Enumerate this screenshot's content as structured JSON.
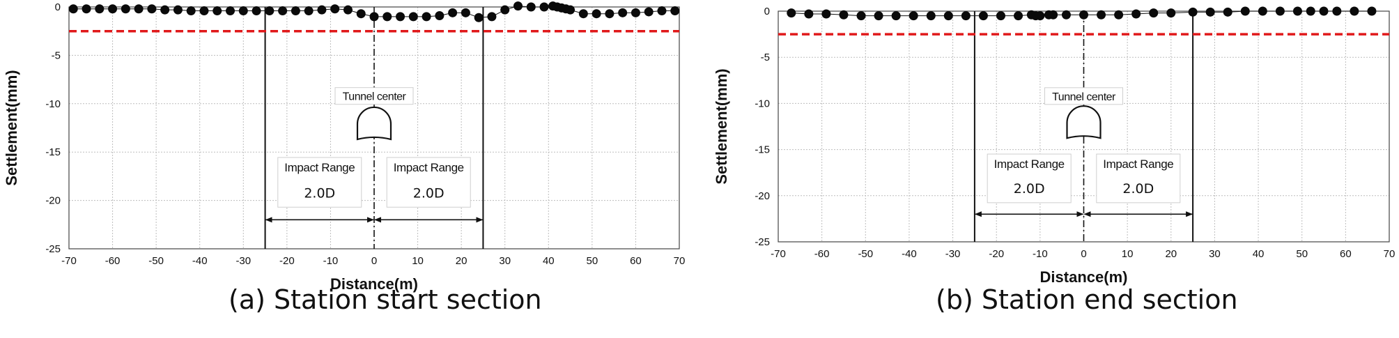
{
  "chart_data": [
    {
      "type": "scatter",
      "caption": "(a) Station start section",
      "xlabel": "Distance(m)",
      "ylabel": "Settlement(mm)",
      "xlim": [
        -70,
        70
      ],
      "ylim": [
        -25,
        0
      ],
      "xticks": [
        -70,
        -60,
        -50,
        -40,
        -30,
        -20,
        -10,
        0,
        10,
        20,
        30,
        40,
        50,
        60,
        70
      ],
      "yticks": [
        0,
        -5,
        -10,
        -15,
        -20,
        -25
      ],
      "grid": true,
      "series": [
        {
          "marker": "circle",
          "x": [
            -69,
            -66,
            -63,
            -60,
            -57,
            -54,
            -51,
            -48,
            -45,
            -42,
            -39,
            -36,
            -33,
            -30,
            -27,
            -24,
            -21,
            -18,
            -15,
            -12,
            -9,
            -6,
            -3,
            0,
            3,
            6,
            9,
            12,
            15,
            18,
            21,
            24,
            27,
            30,
            33,
            36,
            39,
            41,
            42,
            43,
            44,
            45,
            48,
            51,
            54,
            57,
            60,
            63,
            66,
            69
          ],
          "y": [
            -0.2,
            -0.2,
            -0.2,
            -0.2,
            -0.2,
            -0.2,
            -0.2,
            -0.3,
            -0.3,
            -0.4,
            -0.4,
            -0.4,
            -0.4,
            -0.4,
            -0.4,
            -0.4,
            -0.4,
            -0.4,
            -0.4,
            -0.3,
            -0.2,
            -0.3,
            -0.7,
            -1.0,
            -1.0,
            -1.0,
            -1.0,
            -1.0,
            -0.9,
            -0.6,
            -0.6,
            -1.1,
            -1.0,
            -0.3,
            0.1,
            0.0,
            0.0,
            0.1,
            0.0,
            -0.1,
            -0.2,
            -0.3,
            -0.7,
            -0.7,
            -0.7,
            -0.6,
            -0.6,
            -0.5,
            -0.4,
            -0.4
          ]
        }
      ],
      "reference_line": {
        "y": -2.5,
        "color": "#e0191b",
        "style": "dashed"
      },
      "center_line": {
        "x": 0,
        "label": "Tunnel center"
      },
      "boundary_lines": [
        -25,
        25
      ],
      "impact_ranges": [
        {
          "from": -25,
          "to": 0,
          "label": "Impact Range",
          "value": "2.0D"
        },
        {
          "from": 0,
          "to": 25,
          "label": "Impact Range",
          "value": "2.0D"
        }
      ]
    },
    {
      "type": "scatter",
      "caption": "(b) Station end section",
      "xlabel": "Distance(m)",
      "ylabel": "Settlement(mm)",
      "xlim": [
        -70,
        70
      ],
      "ylim": [
        -25,
        0
      ],
      "xticks": [
        -70,
        -60,
        -50,
        -40,
        -30,
        -20,
        -10,
        0,
        10,
        20,
        30,
        40,
        50,
        60,
        70
      ],
      "yticks": [
        0,
        -5,
        -10,
        -15,
        -20,
        -25
      ],
      "grid": true,
      "series": [
        {
          "marker": "circle",
          "x": [
            -67,
            -63,
            -59,
            -55,
            -51,
            -47,
            -43,
            -39,
            -35,
            -31,
            -27,
            -23,
            -19,
            -15,
            -12,
            -11,
            -10,
            -8,
            -7,
            -4,
            0,
            4,
            8,
            12,
            16,
            20,
            25,
            29,
            33,
            37,
            41,
            45,
            49,
            52,
            55,
            58,
            62,
            66
          ],
          "y": [
            -0.2,
            -0.3,
            -0.3,
            -0.4,
            -0.5,
            -0.5,
            -0.5,
            -0.5,
            -0.5,
            -0.5,
            -0.5,
            -0.5,
            -0.5,
            -0.5,
            -0.4,
            -0.5,
            -0.5,
            -0.4,
            -0.4,
            -0.4,
            -0.4,
            -0.4,
            -0.4,
            -0.3,
            -0.2,
            -0.2,
            -0.1,
            -0.1,
            -0.1,
            0.0,
            0.0,
            0.0,
            0.0,
            0.0,
            0.0,
            0.0,
            0.0,
            0.0
          ]
        }
      ],
      "reference_line": {
        "y": -2.5,
        "color": "#e0191b",
        "style": "dashed"
      },
      "center_line": {
        "x": 0,
        "label": "Tunnel center"
      },
      "boundary_lines": [
        -25,
        25
      ],
      "impact_ranges": [
        {
          "from": -25,
          "to": 0,
          "label": "Impact Range",
          "value": "2.0D"
        },
        {
          "from": 0,
          "to": 25,
          "label": "Impact Range",
          "value": "2.0D"
        }
      ]
    }
  ]
}
